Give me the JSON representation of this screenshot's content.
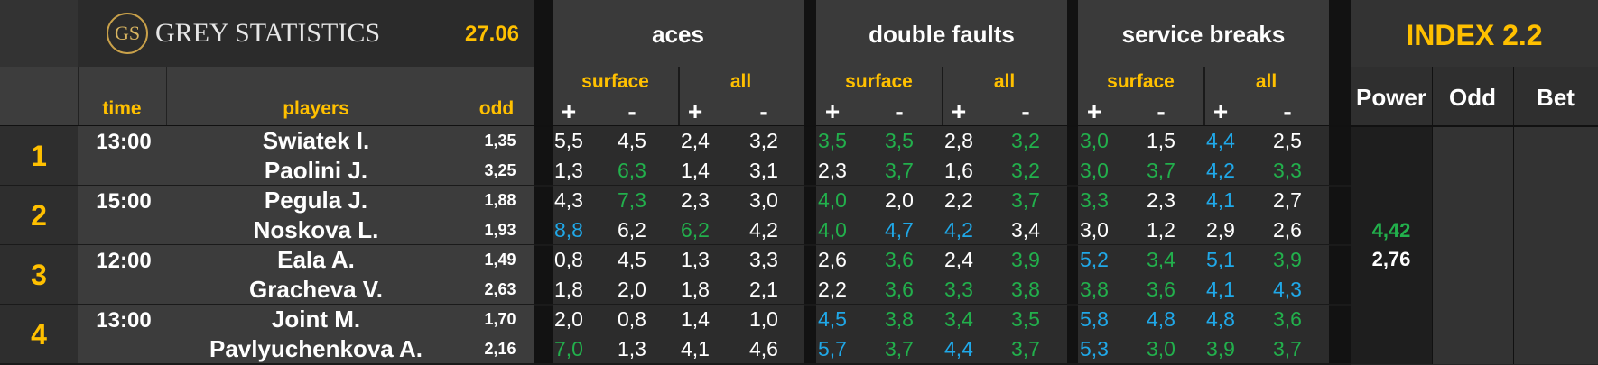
{
  "brand": {
    "logo_text": "GS",
    "name": "GREY STATISTICS",
    "date": "27.06"
  },
  "sections": [
    {
      "title": "aces",
      "sub": [
        "surface",
        "all"
      ]
    },
    {
      "title": "double faults",
      "sub": [
        "surface",
        "all"
      ]
    },
    {
      "title": "service breaks",
      "sub": [
        "surface",
        "all"
      ]
    }
  ],
  "signs": [
    "+",
    "-"
  ],
  "columns": {
    "time": "time",
    "players": "players",
    "odd": "odd"
  },
  "index": {
    "title": "INDEX 2.2",
    "power": "Power",
    "odd": "Odd",
    "bet": "Bet"
  },
  "colors": {
    "white": "#ffffff",
    "green": "#22b04c",
    "blue": "#20a8e8",
    "accent": "#ffc000"
  },
  "matches": [
    {
      "num": "1",
      "time": "13:00",
      "power": "",
      "players": [
        {
          "name": "Swiatek I.",
          "odd": "1,35",
          "stats": [
            [
              "5,5",
              "w"
            ],
            [
              "4,5",
              "w"
            ],
            [
              "2,4",
              "w"
            ],
            [
              "3,2",
              "w"
            ],
            [
              "3,5",
              "g"
            ],
            [
              "3,5",
              "g"
            ],
            [
              "2,8",
              "w"
            ],
            [
              "3,2",
              "g"
            ],
            [
              "3,0",
              "g"
            ],
            [
              "1,5",
              "w"
            ],
            [
              "4,4",
              "b"
            ],
            [
              "2,5",
              "w"
            ]
          ]
        },
        {
          "name": "Paolini J.",
          "odd": "3,25",
          "stats": [
            [
              "1,3",
              "w"
            ],
            [
              "6,3",
              "g"
            ],
            [
              "1,4",
              "w"
            ],
            [
              "3,1",
              "w"
            ],
            [
              "2,3",
              "w"
            ],
            [
              "3,7",
              "g"
            ],
            [
              "1,6",
              "w"
            ],
            [
              "3,2",
              "g"
            ],
            [
              "3,0",
              "g"
            ],
            [
              "3,7",
              "g"
            ],
            [
              "4,2",
              "b"
            ],
            [
              "3,3",
              "g"
            ]
          ]
        }
      ]
    },
    {
      "num": "2",
      "time": "15:00",
      "power": "",
      "players": [
        {
          "name": "Pegula J.",
          "odd": "1,88",
          "stats": [
            [
              "4,3",
              "w"
            ],
            [
              "7,3",
              "g"
            ],
            [
              "2,3",
              "w"
            ],
            [
              "3,0",
              "w"
            ],
            [
              "4,0",
              "g"
            ],
            [
              "2,0",
              "w"
            ],
            [
              "2,2",
              "w"
            ],
            [
              "3,7",
              "g"
            ],
            [
              "3,3",
              "g"
            ],
            [
              "2,3",
              "w"
            ],
            [
              "4,1",
              "b"
            ],
            [
              "2,7",
              "w"
            ]
          ]
        },
        {
          "name": "Noskova L.",
          "odd": "1,93",
          "stats": [
            [
              "8,8",
              "b"
            ],
            [
              "6,2",
              "w"
            ],
            [
              "6,2",
              "g"
            ],
            [
              "4,2",
              "w"
            ],
            [
              "4,0",
              "g"
            ],
            [
              "4,7",
              "b"
            ],
            [
              "4,2",
              "b"
            ],
            [
              "3,4",
              "w"
            ],
            [
              "3,0",
              "w"
            ],
            [
              "1,2",
              "w"
            ],
            [
              "2,9",
              "w"
            ],
            [
              "2,6",
              "w"
            ]
          ]
        }
      ]
    },
    {
      "num": "3",
      "time": "12:00",
      "power": "",
      "players": [
        {
          "name": "Eala A.",
          "odd": "1,49",
          "stats": [
            [
              "0,8",
              "w"
            ],
            [
              "4,5",
              "w"
            ],
            [
              "1,3",
              "w"
            ],
            [
              "3,3",
              "w"
            ],
            [
              "2,6",
              "w"
            ],
            [
              "3,6",
              "g"
            ],
            [
              "2,4",
              "w"
            ],
            [
              "3,9",
              "g"
            ],
            [
              "5,2",
              "b"
            ],
            [
              "3,4",
              "g"
            ],
            [
              "5,1",
              "b"
            ],
            [
              "3,9",
              "g"
            ]
          ]
        },
        {
          "name": "Gracheva V.",
          "odd": "2,63",
          "stats": [
            [
              "1,8",
              "w"
            ],
            [
              "2,0",
              "w"
            ],
            [
              "1,8",
              "w"
            ],
            [
              "2,1",
              "w"
            ],
            [
              "2,2",
              "w"
            ],
            [
              "3,6",
              "g"
            ],
            [
              "3,3",
              "g"
            ],
            [
              "3,8",
              "g"
            ],
            [
              "3,8",
              "g"
            ],
            [
              "3,6",
              "g"
            ],
            [
              "4,1",
              "b"
            ],
            [
              "4,3",
              "b"
            ]
          ]
        }
      ]
    },
    {
      "num": "4",
      "time": "13:00",
      "power": "",
      "players": [
        {
          "name": "Joint M.",
          "odd": "1,70",
          "stats": [
            [
              "2,0",
              "w"
            ],
            [
              "0,8",
              "w"
            ],
            [
              "1,4",
              "w"
            ],
            [
              "1,0",
              "w"
            ],
            [
              "4,5",
              "b"
            ],
            [
              "3,8",
              "g"
            ],
            [
              "3,4",
              "g"
            ],
            [
              "3,5",
              "g"
            ],
            [
              "5,8",
              "b"
            ],
            [
              "4,8",
              "b"
            ],
            [
              "4,8",
              "b"
            ],
            [
              "3,6",
              "g"
            ]
          ]
        },
        {
          "name": "Pavlyuchenkova A.",
          "odd": "2,16",
          "stats": [
            [
              "7,0",
              "g"
            ],
            [
              "1,3",
              "w"
            ],
            [
              "4,1",
              "w"
            ],
            [
              "4,6",
              "w"
            ],
            [
              "5,7",
              "b"
            ],
            [
              "3,7",
              "g"
            ],
            [
              "4,4",
              "b"
            ],
            [
              "3,7",
              "g"
            ],
            [
              "5,3",
              "b"
            ],
            [
              "3,0",
              "g"
            ],
            [
              "3,9",
              "g"
            ],
            [
              "3,7",
              "g"
            ]
          ]
        }
      ]
    }
  ],
  "power_values": [
    {
      "value": "4,42",
      "color": "g"
    },
    {
      "value": "2,76",
      "color": "w"
    }
  ]
}
